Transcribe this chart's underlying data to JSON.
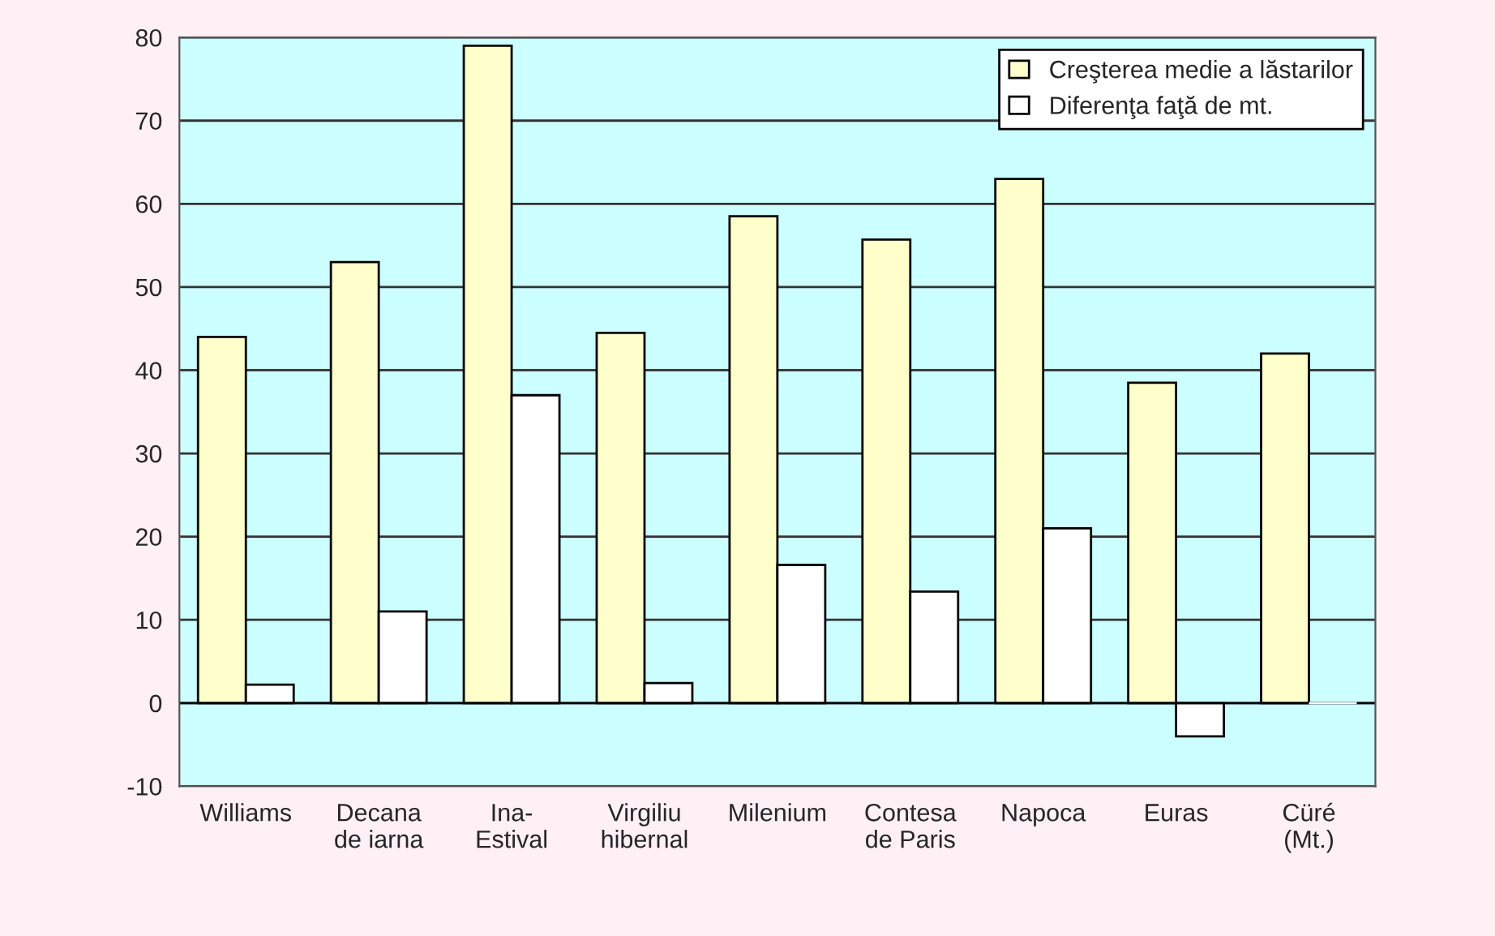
{
  "chart_data": {
    "type": "bar",
    "categories": [
      "Williams",
      "Decana\nde iarna",
      "Ina-\nEstival",
      "Virgiliu\nhibernal",
      "Milenium",
      "Contesa\nde Paris",
      "Napoca",
      "Euras",
      "Cüré\n(Mt.)"
    ],
    "series": [
      {
        "name": "Creşterea medie a lăstarilor",
        "color": "#ffffcc",
        "values": [
          44,
          53,
          79,
          44.5,
          58.5,
          55.7,
          63,
          38.5,
          42
        ]
      },
      {
        "name": "Diferenţa faţă de mt.",
        "color": "#ffffff",
        "values": [
          2.2,
          11,
          37,
          2.4,
          16.6,
          13.4,
          21,
          -4,
          0
        ]
      }
    ],
    "ylim": [
      -10,
      80
    ],
    "yticks": [
      -10,
      0,
      10,
      20,
      30,
      40,
      50,
      60,
      70,
      80
    ],
    "grid": "y",
    "legend": "top right"
  }
}
